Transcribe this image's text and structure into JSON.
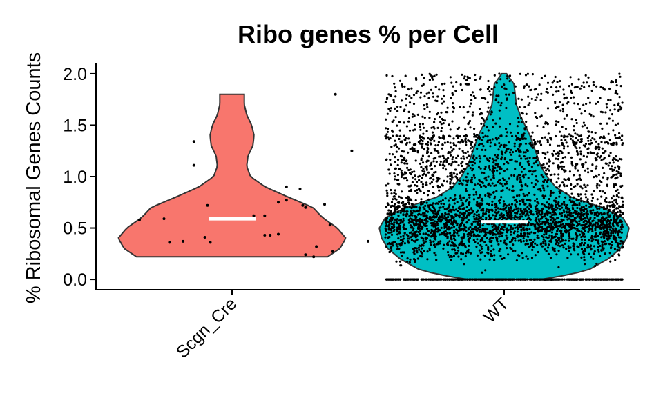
{
  "chart_data": {
    "type": "violin",
    "title": "Ribo genes % per Cell",
    "xlabel": "",
    "ylabel": "% Ribosomal Genes Counts",
    "ylim": [
      -0.1,
      2.1
    ],
    "yticks": [
      0.0,
      0.5,
      1.0,
      1.5,
      2.0
    ],
    "yticklabels": [
      "0.0",
      "0.5",
      "1.0",
      "1.5",
      "2.0"
    ],
    "categories": [
      "Scgn_Cre",
      "WT"
    ],
    "legend": "none",
    "grid": false,
    "series": [
      {
        "category": "Scgn_Cre",
        "color": "#F8766D",
        "median": 0.59,
        "min": 0.22,
        "max": 1.8,
        "density": [
          [
            0.22,
            0.78
          ],
          [
            0.3,
            0.88
          ],
          [
            0.4,
            0.93
          ],
          [
            0.5,
            0.86
          ],
          [
            0.6,
            0.74
          ],
          [
            0.7,
            0.66
          ],
          [
            0.8,
            0.46
          ],
          [
            0.9,
            0.27
          ],
          [
            1.0,
            0.15
          ],
          [
            1.1,
            0.12
          ],
          [
            1.2,
            0.13
          ],
          [
            1.3,
            0.17
          ],
          [
            1.4,
            0.18
          ],
          [
            1.5,
            0.16
          ],
          [
            1.6,
            0.12
          ],
          [
            1.7,
            0.1
          ],
          [
            1.8,
            0.1
          ]
        ],
        "points": [
          [
            0.59,
            -0.25
          ],
          [
            0.58,
            -0.34
          ],
          [
            0.36,
            -0.23
          ],
          [
            0.37,
            -0.18
          ],
          [
            0.36,
            -0.08
          ],
          [
            0.41,
            -0.1
          ],
          [
            0.72,
            -0.09
          ],
          [
            1.11,
            -0.14
          ],
          [
            1.34,
            -0.14
          ],
          [
            0.43,
            0.12
          ],
          [
            0.43,
            0.14
          ],
          [
            0.44,
            0.17
          ],
          [
            0.62,
            0.12
          ],
          [
            0.75,
            0.17
          ],
          [
            0.77,
            0.2
          ],
          [
            0.72,
            0.26
          ],
          [
            0.9,
            0.2
          ],
          [
            0.88,
            0.25
          ],
          [
            0.24,
            0.27
          ],
          [
            0.22,
            0.3
          ],
          [
            0.37,
            0.5
          ],
          [
            0.7,
            0.27
          ],
          [
            0.73,
            0.34
          ],
          [
            0.53,
            0.36
          ],
          [
            0.27,
            0.37
          ],
          [
            1.25,
            0.44
          ],
          [
            1.8,
            0.38
          ],
          [
            0.32,
            0.31
          ],
          [
            0.62,
            0.08
          ]
        ]
      },
      {
        "category": "WT",
        "color": "#00BFC4",
        "median": 0.56,
        "min": 0.0,
        "max": 2.0,
        "density": [
          [
            0.0,
            0.3
          ],
          [
            0.05,
            0.55
          ],
          [
            0.1,
            0.7
          ],
          [
            0.2,
            0.85
          ],
          [
            0.3,
            0.95
          ],
          [
            0.4,
            1.0
          ],
          [
            0.5,
            1.02
          ],
          [
            0.6,
            0.97
          ],
          [
            0.7,
            0.8
          ],
          [
            0.8,
            0.55
          ],
          [
            0.9,
            0.42
          ],
          [
            1.0,
            0.35
          ],
          [
            1.1,
            0.3
          ],
          [
            1.2,
            0.27
          ],
          [
            1.3,
            0.24
          ],
          [
            1.4,
            0.21
          ],
          [
            1.5,
            0.17
          ],
          [
            1.6,
            0.13
          ],
          [
            1.7,
            0.1
          ],
          [
            1.8,
            0.09
          ],
          [
            1.9,
            0.08
          ],
          [
            2.0,
            0.02
          ]
        ],
        "n_points": 4200,
        "zero_fraction": 0.1
      }
    ]
  }
}
